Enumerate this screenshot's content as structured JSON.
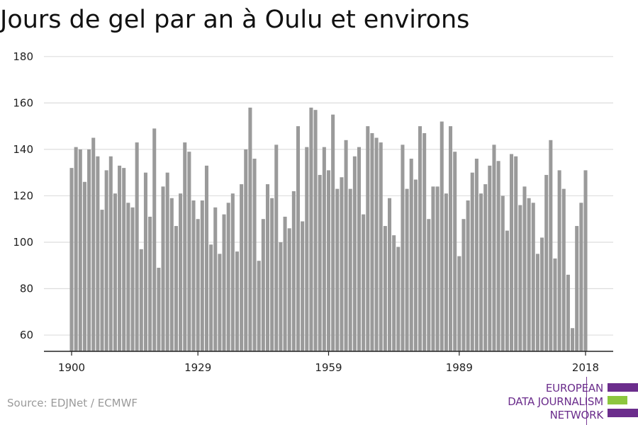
{
  "title": "Jours de gel par an à Oulu et environs",
  "source": "Source: EDJNet / ECMWF",
  "logo": {
    "line1": "EUROPEAN",
    "line2": "DATA JOURNALISM",
    "line3": "NETWORK"
  },
  "colors": {
    "bar": "#9a9a9a",
    "grid": "#dddddd",
    "axis": "#222222",
    "logo_purple": "#6b2d8c",
    "logo_green": "#8cc63f"
  },
  "chart_data": {
    "type": "bar",
    "title": "Jours de gel par an à Oulu et environs",
    "xlabel": "",
    "ylabel": "",
    "ylim": [
      53,
      183
    ],
    "yticks": [
      60,
      80,
      100,
      120,
      140,
      160,
      180
    ],
    "xtick_labels": [
      "1900",
      "1929",
      "1959",
      "1989",
      "2018"
    ],
    "grid": true,
    "legend": "none",
    "years": [
      1900,
      1901,
      1902,
      1903,
      1904,
      1905,
      1906,
      1907,
      1908,
      1909,
      1910,
      1911,
      1912,
      1913,
      1914,
      1915,
      1916,
      1917,
      1918,
      1919,
      1920,
      1921,
      1922,
      1923,
      1924,
      1925,
      1926,
      1927,
      1928,
      1929,
      1930,
      1931,
      1932,
      1933,
      1934,
      1935,
      1936,
      1937,
      1938,
      1939,
      1940,
      1941,
      1942,
      1943,
      1944,
      1945,
      1946,
      1947,
      1948,
      1949,
      1950,
      1951,
      1952,
      1953,
      1954,
      1955,
      1956,
      1957,
      1958,
      1959,
      1960,
      1961,
      1962,
      1963,
      1964,
      1965,
      1966,
      1967,
      1968,
      1969,
      1970,
      1971,
      1972,
      1973,
      1974,
      1975,
      1976,
      1977,
      1978,
      1979,
      1980,
      1981,
      1982,
      1983,
      1984,
      1985,
      1986,
      1987,
      1988,
      1989,
      1990,
      1991,
      1992,
      1993,
      1994,
      1995,
      1996,
      1997,
      1998,
      1999,
      2000,
      2001,
      2002,
      2003,
      2004,
      2005,
      2006,
      2007,
      2008,
      2009,
      2010,
      2011,
      2012,
      2013,
      2014,
      2015,
      2016,
      2017,
      2018
    ],
    "values": [
      132,
      141,
      140,
      126,
      140,
      145,
      137,
      114,
      131,
      137,
      121,
      133,
      132,
      117,
      115,
      143,
      97,
      130,
      111,
      149,
      89,
      124,
      130,
      119,
      107,
      121,
      143,
      139,
      118,
      110,
      118,
      133,
      99,
      115,
      95,
      112,
      117,
      121,
      96,
      125,
      140,
      158,
      136,
      92,
      110,
      125,
      119,
      142,
      100,
      111,
      106,
      122,
      150,
      109,
      141,
      158,
      157,
      129,
      141,
      131,
      155,
      123,
      128,
      144,
      123,
      137,
      141,
      112,
      150,
      147,
      145,
      143,
      107,
      119,
      103,
      98,
      142,
      123,
      136,
      127,
      150,
      147,
      110,
      124,
      124,
      152,
      121,
      150,
      139,
      94,
      110,
      118,
      130,
      136,
      121,
      125,
      133,
      142,
      135,
      120,
      105,
      138,
      137,
      116,
      124,
      119,
      117,
      95,
      102,
      129,
      144,
      93,
      131,
      123,
      86,
      63,
      107,
      117,
      131
    ]
  }
}
